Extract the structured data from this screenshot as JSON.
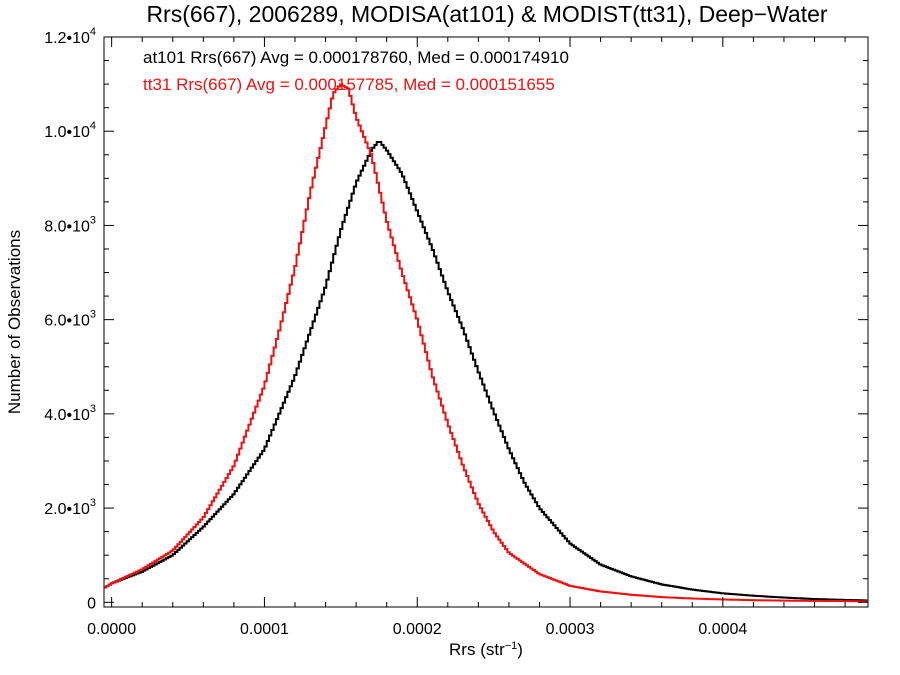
{
  "chart_data": {
    "type": "line",
    "title": "Rrs(667), 2006289, MODISA(at101) & MODIST(tt31), Deep−Water",
    "xlabel": "Rrs (str",
    "xlabel_sup": "−1",
    "xlabel_tail": ")",
    "ylabel": "Number of Observations",
    "xlim": [
      -5e-06,
      0.000495
    ],
    "ylim": [
      -100,
      12000
    ],
    "grid": false,
    "x_ticks": [
      {
        "value": 0.0,
        "label": "0.0000"
      },
      {
        "value": 0.0001,
        "label": "0.0001"
      },
      {
        "value": 0.0002,
        "label": "0.0002"
      },
      {
        "value": 0.0003,
        "label": "0.0003"
      },
      {
        "value": 0.0004,
        "label": "0.0004"
      }
    ],
    "y_ticks": [
      {
        "value": 0,
        "base": "0",
        "exp": ""
      },
      {
        "value": 2000,
        "base": "2.0•10",
        "exp": "3"
      },
      {
        "value": 4000,
        "base": "4.0•10",
        "exp": "3"
      },
      {
        "value": 6000,
        "base": "6.0•10",
        "exp": "3"
      },
      {
        "value": 8000,
        "base": "8.0•10",
        "exp": "3"
      },
      {
        "value": 10000,
        "base": "1.0•10",
        "exp": "4"
      },
      {
        "value": 12000,
        "base": "1.2•10",
        "exp": "4"
      }
    ],
    "annotations": [
      {
        "text": "at101 Rrs(667) Avg = 0.000178760, Med = 0.000174910",
        "color": "#000000"
      },
      {
        "text": "tt31 Rrs(667) Avg = 0.000157785, Med = 0.000151655",
        "color": "#ee1111"
      }
    ],
    "series": [
      {
        "color": "#000000",
        "x": [
          -5e-06,
          0.0,
          2e-05,
          4e-05,
          6e-05,
          8e-05,
          0.0001,
          0.00012,
          0.00014,
          0.00015,
          0.00016,
          0.00017,
          0.000175,
          0.00018,
          0.00019,
          0.0002,
          0.00021,
          0.00022,
          0.00023,
          0.00024,
          0.00025,
          0.00026,
          0.00027,
          0.00028,
          0.0003,
          0.00032,
          0.00034,
          0.00036,
          0.00038,
          0.0004,
          0.00042,
          0.00044,
          0.00046,
          0.00048,
          0.000495
        ],
        "y": [
          300,
          400,
          650,
          1000,
          1600,
          2300,
          3250,
          4800,
          6700,
          7900,
          8900,
          9600,
          9800,
          9600,
          9100,
          8300,
          7500,
          6600,
          5800,
          4900,
          4050,
          3250,
          2550,
          2000,
          1250,
          800,
          550,
          380,
          270,
          190,
          140,
          100,
          70,
          50,
          40
        ]
      },
      {
        "color": "#ee1111",
        "x": [
          -5e-06,
          0.0,
          2e-05,
          4e-05,
          6e-05,
          8e-05,
          0.0001,
          0.00011,
          0.00012,
          0.00013,
          0.00014,
          0.000145,
          0.00015,
          0.000155,
          0.00016,
          0.00017,
          0.00018,
          0.00019,
          0.0002,
          0.00021,
          0.00022,
          0.00023,
          0.00024,
          0.00025,
          0.00026,
          0.00028,
          0.0003,
          0.00032,
          0.00034,
          0.00036,
          0.00038,
          0.0004,
          0.00042,
          0.00044,
          0.00046,
          0.00048,
          0.000495
        ],
        "y": [
          300,
          400,
          700,
          1100,
          1800,
          2900,
          4600,
          5800,
          7100,
          8700,
          10100,
          10800,
          11000,
          10900,
          10300,
          9500,
          8100,
          7000,
          6000,
          4800,
          3800,
          2900,
          2100,
          1500,
          1050,
          600,
          350,
          230,
          160,
          110,
          80,
          60,
          45,
          35,
          30,
          25,
          20
        ]
      }
    ]
  }
}
